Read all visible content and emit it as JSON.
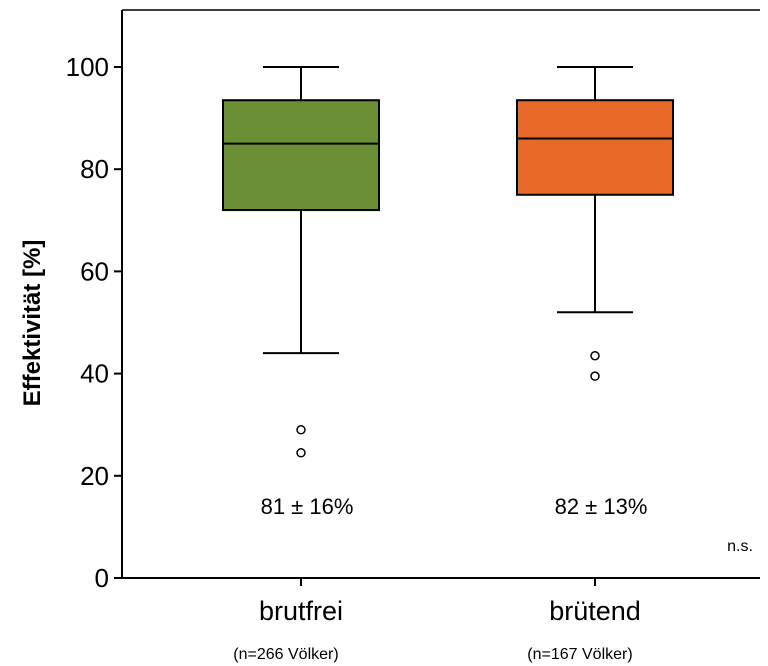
{
  "chart_data": {
    "type": "box",
    "ylabel": "Effektivität [%]",
    "ylim": [
      0,
      110
    ],
    "yticks": [
      0,
      20,
      40,
      60,
      80,
      100
    ],
    "categories": [
      "brutfrei",
      "brütend"
    ],
    "sublabels": [
      "(n=266 Völker)",
      "(n=167 Völker)"
    ],
    "boxes": [
      {
        "name": "brutfrei",
        "min": 44,
        "q1": 72,
        "median": 85,
        "q3": 93.5,
        "max": 100,
        "outliers": [
          29,
          24.5
        ],
        "annotation": "81 ± 16%",
        "color": "#6a8f35"
      },
      {
        "name": "brütend",
        "min": 52,
        "q1": 75,
        "median": 86,
        "q3": 93.5,
        "max": 100,
        "outliers": [
          43.5,
          39.5
        ],
        "annotation": "82 ± 13%",
        "color": "#e8692a"
      }
    ],
    "note": "n.s."
  }
}
